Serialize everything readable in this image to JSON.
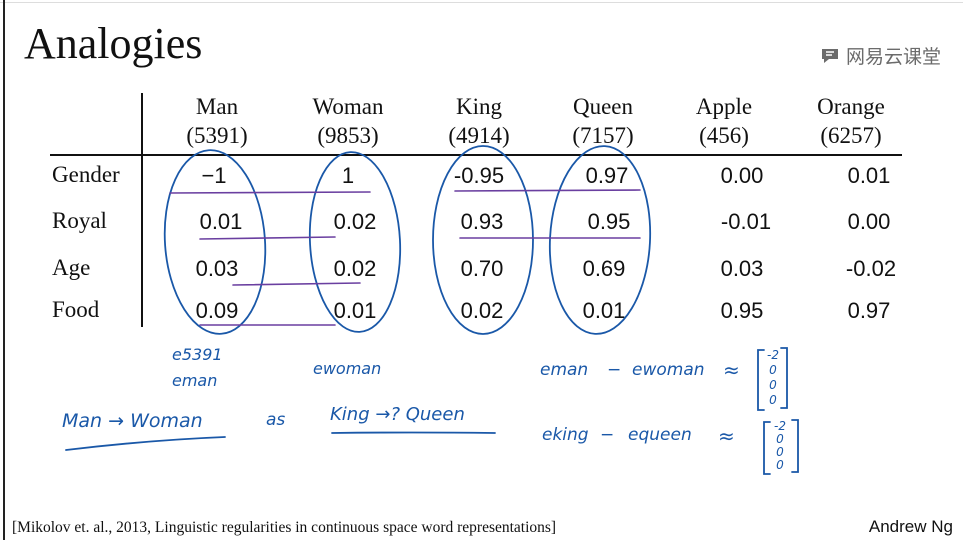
{
  "slide": {
    "title": "Analogies",
    "watermark": "网易云课堂",
    "citation": "[Mikolov et. al., 2013, Linguistic regularities in continuous space word representations]",
    "author": "Andrew Ng"
  },
  "table": {
    "columns": [
      {
        "word": "Man",
        "index": "(5391)"
      },
      {
        "word": "Woman",
        "index": "(9853)"
      },
      {
        "word": "King",
        "index": "(4914)"
      },
      {
        "word": "Queen",
        "index": "(7157)"
      },
      {
        "word": "Apple",
        "index": "(456)"
      },
      {
        "word": "Orange",
        "index": "(6257)"
      }
    ],
    "rows": [
      {
        "label": "Gender",
        "values": [
          "−1",
          "1",
          "-0.95",
          "0.97",
          "0.00",
          "0.01"
        ]
      },
      {
        "label": "Royal",
        "values": [
          "0.01",
          "0.02",
          "0.93",
          "0.95",
          "-0.01",
          "0.00"
        ]
      },
      {
        "label": "Age",
        "values": [
          "0.03",
          "0.02",
          "0.70",
          "0.69",
          "0.03",
          "-0.02"
        ]
      },
      {
        "label": "Food",
        "values": [
          "0.09",
          "0.01",
          "0.02",
          "0.01",
          "0.95",
          "0.97"
        ]
      }
    ]
  },
  "annotations": {
    "e5391": "e5391",
    "eman": "eman",
    "ewoman": "ewoman",
    "analogy_left": "Man → Woman",
    "analogy_as": "as",
    "analogy_right": "King →? Queen",
    "eq1_left": "eman",
    "eq1_minus": "−",
    "eq1_right": "ewoman",
    "eq1_approx": "≈",
    "eq1_vector": [
      "-2",
      "0",
      "0",
      "0"
    ],
    "eq2_left": "eking",
    "eq2_minus": "−",
    "eq2_right": "equeen",
    "eq2_approx": "≈",
    "eq2_vector": [
      "-2",
      "0",
      "0",
      "0"
    ]
  },
  "colors": {
    "pen_blue": "#1a58a8",
    "pen_purple": "#6a3fa0",
    "text": "#111111"
  }
}
